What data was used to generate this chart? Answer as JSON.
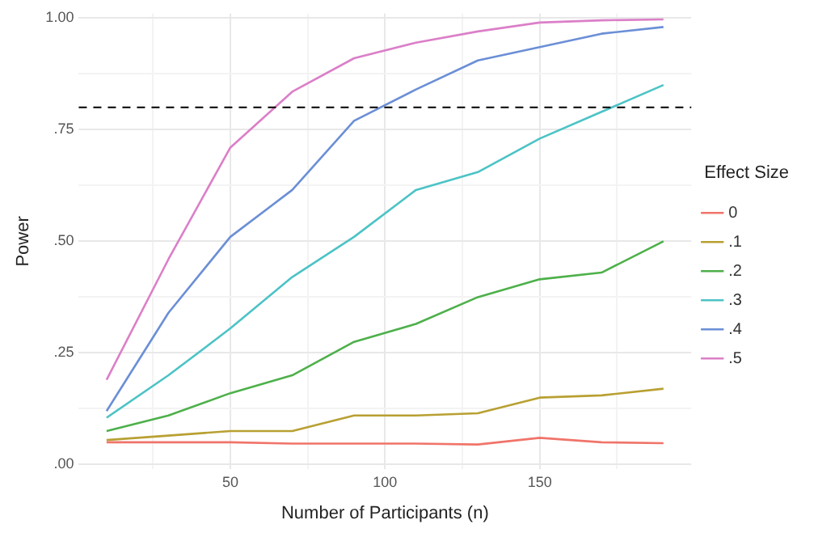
{
  "chart_data": {
    "type": "line",
    "xlabel": "Number of Participants (n)",
    "ylabel": "Power",
    "legend_title": "Effect Size",
    "legend": "right",
    "grid": true,
    "marker": "none",
    "line_style": "solid",
    "x": [
      10,
      30,
      50,
      70,
      90,
      110,
      130,
      150,
      170,
      190
    ],
    "xlim": [
      1,
      199
    ],
    "xticks": [
      {
        "value": 25,
        "label": null
      },
      50,
      {
        "value": 75,
        "label": null
      },
      100,
      {
        "value": 125,
        "label": null
      },
      150,
      {
        "value": 175,
        "label": null
      }
    ],
    "ylim": [
      -0.01,
      1.01
    ],
    "yticks": [
      {
        "value": 0,
        "label": ".00"
      },
      {
        "value": 0.125,
        "label": null
      },
      {
        "value": 0.25,
        "label": ".25"
      },
      {
        "value": 0.375,
        "label": null
      },
      {
        "value": 0.5,
        "label": ".50"
      },
      {
        "value": 0.625,
        "label": null
      },
      {
        "value": 0.75,
        "label": ".75"
      },
      {
        "value": 0.875,
        "label": null
      },
      {
        "value": 1,
        "label": "1.00"
      }
    ],
    "ref_lines": [
      {
        "axis": "y",
        "value": 0.8,
        "color": "#000000",
        "line_style": "dashed"
      }
    ],
    "series": [
      {
        "name": "0",
        "color": "#f0746a",
        "values": [
          0.05,
          0.05,
          0.05,
          0.047,
          0.047,
          0.047,
          0.045,
          0.06,
          0.05,
          0.048
        ]
      },
      {
        "name": ".1",
        "color": "#b8a032",
        "values": [
          0.055,
          0.065,
          0.075,
          0.075,
          0.11,
          0.11,
          0.115,
          0.15,
          0.155,
          0.17
        ]
      },
      {
        "name": ".2",
        "color": "#4db04a",
        "values": [
          0.075,
          0.11,
          0.16,
          0.2,
          0.275,
          0.315,
          0.375,
          0.415,
          0.43,
          0.5
        ]
      },
      {
        "name": ".3",
        "color": "#4cc3c6",
        "values": [
          0.105,
          0.2,
          0.305,
          0.42,
          0.51,
          0.615,
          0.655,
          0.73,
          0.79,
          0.85
        ]
      },
      {
        "name": ".4",
        "color": "#6b8fd6",
        "values": [
          0.12,
          0.34,
          0.51,
          0.615,
          0.77,
          0.84,
          0.905,
          0.935,
          0.965,
          0.98
        ]
      },
      {
        "name": ".5",
        "color": "#db7fc8",
        "values": [
          0.19,
          0.46,
          0.71,
          0.835,
          0.91,
          0.945,
          0.97,
          0.99,
          0.995,
          0.997
        ]
      }
    ]
  }
}
